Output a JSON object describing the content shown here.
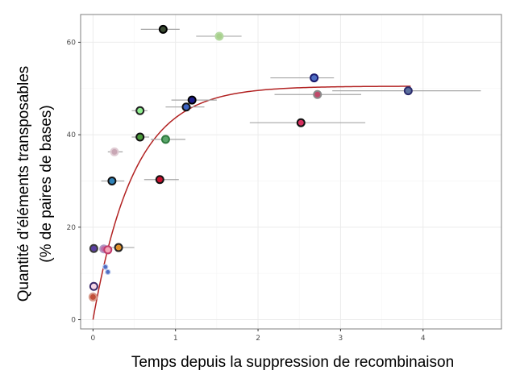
{
  "chart_data": {
    "type": "scatter",
    "xlabel": "Temps depuis la suppression de recombinaison",
    "ylabel_lines": [
      "Quantité d’éléments transposables",
      "(% de paires de bases)"
    ],
    "xlim": [
      -0.15,
      4.95
    ],
    "ylim": [
      -2,
      66
    ],
    "x_ticks": [
      0,
      1,
      2,
      3,
      4
    ],
    "x_tick_labels": [
      "0",
      "1",
      "2",
      "3",
      "4"
    ],
    "y_ticks": [
      0,
      20,
      40,
      60
    ],
    "y_tick_labels": [
      "0",
      "20",
      "40",
      "60"
    ],
    "grid": true,
    "fit_curve": {
      "asymptote": 50.5,
      "rate": 2.0,
      "x_end": 3.85,
      "color": "#b22222"
    },
    "points": [
      {
        "x": 0.85,
        "y": 62.8,
        "xerr": [
          0.58,
          1.05
        ],
        "fill": "#3a4a32",
        "stroke": "#000000"
      },
      {
        "x": 1.53,
        "y": 61.3,
        "xerr": [
          1.25,
          1.8
        ],
        "fill": "#a8d08d",
        "stroke": "#b5d9a2"
      },
      {
        "x": 2.68,
        "y": 52.3,
        "xerr": [
          2.15,
          2.92
        ],
        "fill": "#4f6ec4",
        "stroke": "#1a1a6e"
      },
      {
        "x": 3.82,
        "y": 49.5,
        "xerr": [
          2.9,
          4.7
        ],
        "fill": "#5b6f9e",
        "stroke": "#2b2b6b"
      },
      {
        "x": 2.72,
        "y": 48.7,
        "xerr": [
          2.2,
          3.25
        ],
        "fill": "#c04a6a",
        "stroke": "#8a8a8a"
      },
      {
        "x": 1.2,
        "y": 47.5,
        "xerr": [
          0.95,
          1.5
        ],
        "fill": "#1c1c8a",
        "stroke": "#000000"
      },
      {
        "x": 1.13,
        "y": 46.0,
        "xerr": [
          0.88,
          1.35
        ],
        "fill": "#3b63c2",
        "stroke": "#111111"
      },
      {
        "x": 0.57,
        "y": 45.2,
        "xerr": [
          0.47,
          0.66
        ],
        "fill": "#90ee90",
        "stroke": "#222222"
      },
      {
        "x": 2.52,
        "y": 42.6,
        "xerr": [
          1.9,
          3.3
        ],
        "fill": "#d6305f",
        "stroke": "#111111"
      },
      {
        "x": 0.57,
        "y": 39.5,
        "xerr": [
          0.47,
          0.68
        ],
        "fill": "#4a9a3a",
        "stroke": "#111111"
      },
      {
        "x": 0.88,
        "y": 39.0,
        "xerr": [
          0.7,
          1.12
        ],
        "fill": "#5aa66a",
        "stroke": "#2f7a3f"
      },
      {
        "x": 0.26,
        "y": 36.3,
        "xerr": [
          0.18,
          0.36
        ],
        "fill": "#c9a7b5",
        "stroke": "#e0ccd4"
      },
      {
        "x": 0.81,
        "y": 30.3,
        "xerr": [
          0.62,
          1.04
        ],
        "fill": "#c8102e",
        "stroke": "#111111"
      },
      {
        "x": 0.23,
        "y": 30.0,
        "xerr": [
          0.1,
          0.38
        ],
        "fill": "#2f82b8",
        "stroke": "#111111"
      },
      {
        "x": 0.31,
        "y": 15.6,
        "xerr": [
          0.14,
          0.5
        ],
        "fill": "#e0902a",
        "stroke": "#222222"
      },
      {
        "x": 0.01,
        "y": 15.4,
        "xerr": [
          0.01,
          0.01
        ],
        "fill": "#5a3fa0",
        "stroke": "#3a3a3a"
      },
      {
        "x": 0.13,
        "y": 15.3,
        "xerr": [
          0.08,
          0.18
        ],
        "fill": "#c06aa6",
        "stroke": "#b09ac4"
      },
      {
        "x": 0.18,
        "y": 15.1,
        "xerr": [
          0.14,
          0.23
        ],
        "fill": "#f4a7b8",
        "stroke": "#c03a6a"
      },
      {
        "x": 0.15,
        "y": 11.4,
        "xerr": [
          0.15,
          0.15
        ],
        "fill": "#4f6ec4",
        "stroke": "#b8c8ec",
        "small": true
      },
      {
        "x": 0.18,
        "y": 10.3,
        "xerr": [
          0.18,
          0.18
        ],
        "fill": "#4f6ec4",
        "stroke": "#b8c8ec",
        "small": true
      },
      {
        "x": 0.01,
        "y": 7.2,
        "xerr": [
          0.01,
          0.01
        ],
        "fill": "#f5d6e6",
        "stroke": "#3a2a6a"
      },
      {
        "x": 0.0,
        "y": 4.9,
        "xerr": [
          0.0,
          0.0
        ],
        "fill": "#c0503a",
        "stroke": "#d89a8a"
      }
    ]
  }
}
